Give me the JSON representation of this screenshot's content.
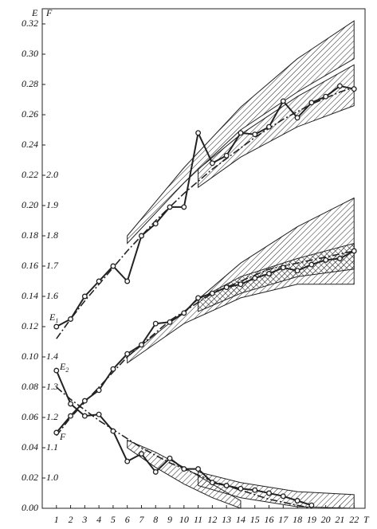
{
  "chart_data": {
    "type": "line",
    "ylabel": "E",
    "y2label": "F",
    "xlabel": "T",
    "annotations": {
      "e1": "E",
      "e1_sub": "1",
      "e2": "E",
      "e2_sub": "2",
      "f": "F"
    },
    "x": [
      1,
      2,
      3,
      4,
      5,
      6,
      7,
      8,
      9,
      10,
      11,
      12,
      13,
      14,
      15,
      16,
      17,
      18,
      19,
      20,
      21,
      22
    ],
    "xlim": [
      0,
      23
    ],
    "xticks": [
      1,
      2,
      3,
      4,
      5,
      6,
      7,
      8,
      9,
      10,
      11,
      12,
      13,
      14,
      15,
      16,
      17,
      18,
      19,
      20,
      21,
      22
    ],
    "ylim": [
      0,
      0.33
    ],
    "yticks": [
      {
        "value": 0,
        "label": "0.00"
      },
      {
        "value": 0.02,
        "label": "0.02"
      },
      {
        "value": 0.04,
        "label": "0.04"
      },
      {
        "value": 0.06,
        "label": "0.06"
      },
      {
        "value": 0.08,
        "label": "0.08"
      },
      {
        "value": 0.1,
        "label": "0.10"
      },
      {
        "value": 0.12,
        "label": "0.12"
      },
      {
        "value": 0.14,
        "label": "0.14"
      },
      {
        "value": 0.16,
        "label": "0.16"
      },
      {
        "value": 0.18,
        "label": "0.18"
      },
      {
        "value": 0.2,
        "label": "0.20"
      },
      {
        "value": 0.22,
        "label": "0.22"
      },
      {
        "value": 0.24,
        "label": "0.24"
      },
      {
        "value": 0.26,
        "label": "0.26"
      },
      {
        "value": 0.28,
        "label": "0.28"
      },
      {
        "value": 0.3,
        "label": "0.30"
      },
      {
        "value": 0.32,
        "label": "0.32"
      }
    ],
    "y2lim": [
      0.9,
      2.55
    ],
    "y2ticks": [
      {
        "value": 1,
        "label": "1.0"
      },
      1.1,
      1.2,
      1.3,
      1.4,
      1.6,
      1.7,
      1.8,
      1.9,
      {
        "value": 2,
        "label": "2.0"
      }
    ],
    "grid": false,
    "color": "#222222",
    "series": [
      {
        "values": [
          0.12,
          0.125,
          0.14,
          0.15,
          0.16,
          0.15,
          0.18,
          0.188,
          0.199,
          0.199,
          0.248,
          0.228,
          0.233,
          0.248,
          0.247,
          0.252,
          0.269,
          0.258,
          0.268,
          0.272,
          0.279,
          0.277
        ]
      },
      {
        "values": [
          0.091,
          0.069,
          0.061,
          0.062,
          0.051,
          0.031,
          0.036,
          0.024,
          0.033,
          0.026,
          0.026,
          0.017,
          0.015,
          0.013,
          0.012,
          0.01,
          0.008,
          0.005,
          0.002,
          null,
          null,
          null
        ]
      },
      {
        "axis": "y2",
        "values": [
          1.15,
          1.205,
          1.255,
          1.29,
          1.36,
          1.41,
          1.44,
          1.51,
          1.515,
          1.545,
          1.595,
          1.61,
          1.63,
          1.64,
          1.66,
          1.675,
          1.695,
          1.685,
          1.705,
          1.72,
          1.725,
          1.75
        ]
      }
    ],
    "trends": [
      {
        "values": [
          0.112,
          0.125,
          0.137,
          0.148,
          0.159,
          0.17,
          0.18,
          0.19,
          0.199,
          0.208,
          0.216,
          0.224,
          0.231,
          0.238,
          0.245,
          0.251,
          0.257,
          0.262,
          0.267,
          0.271,
          0.275,
          0.278
        ]
      },
      {
        "values": [
          0.08,
          0.072,
          0.065,
          0.058,
          0.052,
          0.046,
          0.04,
          0.035,
          0.03,
          0.026,
          0.022,
          0.018,
          0.015,
          0.012,
          0.009,
          0.006,
          0.004,
          0.002,
          0.0,
          null,
          null,
          null
        ]
      },
      {
        "axis": "y2",
        "values": [
          1.14,
          1.2,
          1.25,
          1.3,
          1.35,
          1.4,
          1.44,
          1.48,
          1.52,
          1.55,
          1.58,
          1.61,
          1.63,
          1.65,
          1.67,
          1.69,
          1.7,
          1.71,
          1.72,
          1.73,
          1.74,
          1.75
        ]
      }
    ],
    "bands": [
      {
        "pattern": "hatch",
        "x": [
          6,
          10,
          14,
          18,
          22
        ],
        "lower": [
          0.175,
          0.215,
          0.25,
          0.275,
          0.297
        ],
        "upper": [
          0.18,
          0.225,
          0.265,
          0.297,
          0.322
        ]
      },
      {
        "pattern": "hatch",
        "x": [
          11,
          14,
          18,
          22
        ],
        "lower": [
          0.212,
          0.232,
          0.252,
          0.266
        ],
        "upper": [
          0.224,
          0.247,
          0.272,
          0.293
        ]
      },
      {
        "pattern": "hatch",
        "x": [
          6,
          10,
          14,
          18,
          22
        ],
        "lower": [
          0.096,
          0.122,
          0.139,
          0.148,
          0.148
        ],
        "upper": [
          0.1,
          0.13,
          0.162,
          0.186,
          0.205
        ]
      },
      {
        "pattern": "crosshatch",
        "x": [
          11,
          14,
          18,
          22
        ],
        "lower": [
          0.13,
          0.142,
          0.153,
          0.158
        ],
        "upper": [
          0.138,
          0.153,
          0.165,
          0.175
        ]
      },
      {
        "pattern": "hatch",
        "x": [
          6,
          8,
          10,
          12,
          14
        ],
        "lower": [
          0.04,
          0.027,
          0.016,
          0.007,
          0.0
        ],
        "upper": [
          0.045,
          0.037,
          0.027,
          0.016,
          0.005
        ]
      },
      {
        "pattern": "hatch",
        "x": [
          11,
          14,
          18,
          22
        ],
        "lower": [
          0.015,
          0.007,
          0.001,
          0.0
        ],
        "upper": [
          0.024,
          0.017,
          0.011,
          0.009
        ]
      }
    ]
  }
}
